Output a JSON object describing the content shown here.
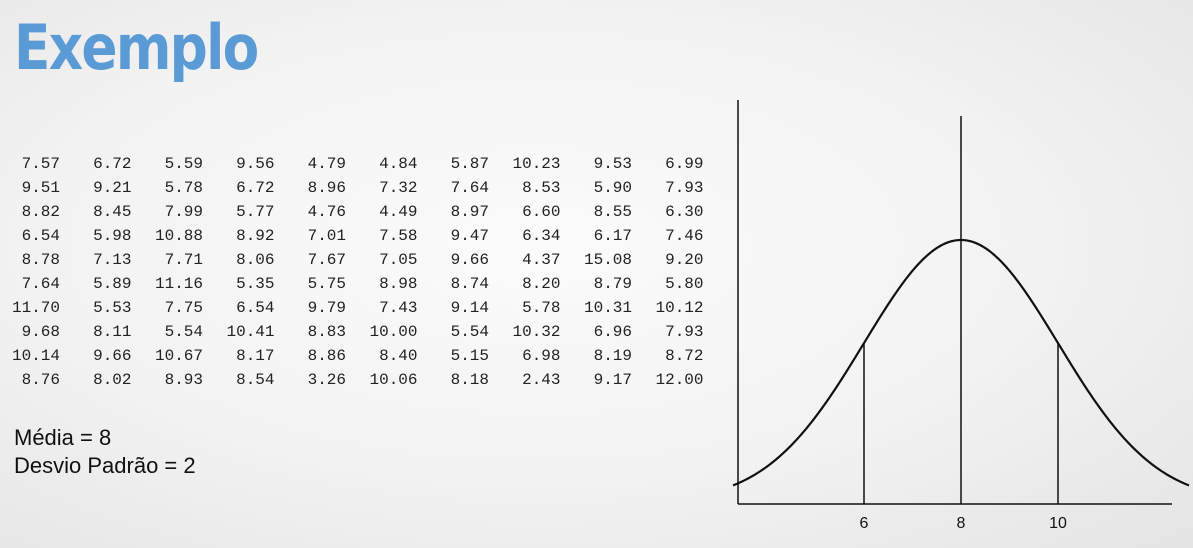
{
  "title": "Exemplo",
  "stats": {
    "media": "Média = 8",
    "desvio": "Desvio Padrão = 2"
  },
  "table_rows": [
    [
      "7.57",
      "6.72",
      "5.59",
      "9.56",
      "4.79",
      "4.84",
      "5.87",
      "10.23",
      "9.53",
      "6.99"
    ],
    [
      "9.51",
      "9.21",
      "5.78",
      "6.72",
      "8.96",
      "7.32",
      "7.64",
      "8.53",
      "5.90",
      "7.93"
    ],
    [
      "8.82",
      "8.45",
      "7.99",
      "5.77",
      "4.76",
      "4.49",
      "8.97",
      "6.60",
      "8.55",
      "6.30"
    ],
    [
      "6.54",
      "5.98",
      "10.88",
      "8.92",
      "7.01",
      "7.58",
      "9.47",
      "6.34",
      "6.17",
      "7.46"
    ],
    [
      "8.78",
      "7.13",
      "7.71",
      "8.06",
      "7.67",
      "7.05",
      "9.66",
      "4.37",
      "15.08",
      "9.20"
    ],
    [
      "7.64",
      "5.89",
      "11.16",
      "5.35",
      "5.75",
      "8.98",
      "8.74",
      "8.20",
      "8.79",
      "5.80"
    ],
    [
      "11.70",
      "5.53",
      "7.75",
      "6.54",
      "9.79",
      "7.43",
      "9.14",
      "5.78",
      "10.31",
      "10.12"
    ],
    [
      "9.68",
      "8.11",
      "5.54",
      "10.41",
      "8.83",
      "10.00",
      "5.54",
      "10.32",
      "6.96",
      "7.93"
    ],
    [
      "10.14",
      "9.66",
      "10.67",
      "8.17",
      "8.86",
      "8.40",
      "5.15",
      "6.98",
      "8.19",
      "8.72"
    ],
    [
      "8.76",
      "8.02",
      "8.93",
      "8.54",
      "3.26",
      "10.06",
      "8.18",
      "2.43",
      "9.17",
      "12.00"
    ]
  ],
  "chart_data": {
    "type": "line",
    "curve": "normal-distribution",
    "mean": 8,
    "sd": 2,
    "x_tick_labels": [
      "6",
      "8",
      "10"
    ],
    "x_ticks": [
      6,
      8,
      10
    ],
    "xlim": [
      3.3,
      12.7
    ],
    "marked_lines": [
      6,
      8,
      10
    ],
    "grid": false,
    "legend": "none"
  }
}
